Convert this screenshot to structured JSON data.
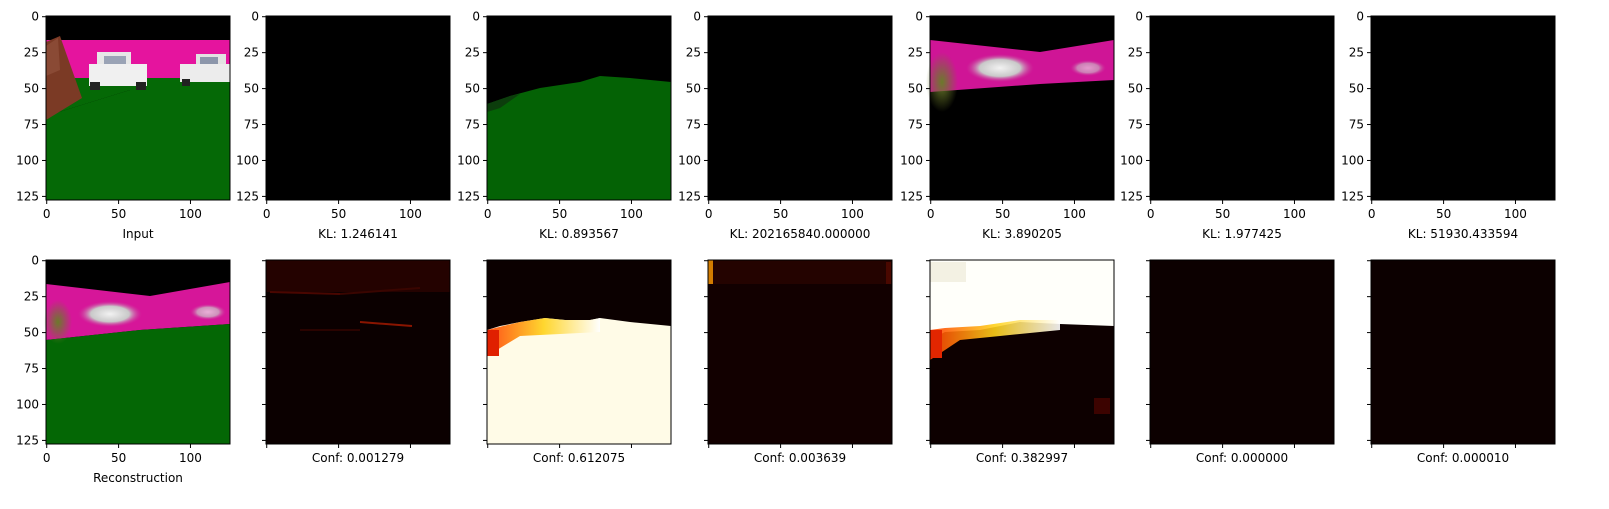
{
  "figure": {
    "top_row": {
      "panels": [
        {
          "id": "input",
          "caption": "Input",
          "content": "input-scene"
        },
        {
          "id": "c1",
          "caption": "KL: 1.246141",
          "content": "black"
        },
        {
          "id": "c2",
          "caption": "KL: 0.893567",
          "content": "green-ground"
        },
        {
          "id": "c3",
          "caption": "KL: 202165840.000000",
          "content": "black"
        },
        {
          "id": "c4",
          "caption": "KL: 3.890205",
          "content": "cars-sky"
        },
        {
          "id": "c5",
          "caption": "KL: 1.977425",
          "content": "black"
        },
        {
          "id": "c6",
          "caption": "KL: 51930.433594",
          "content": "black"
        }
      ]
    },
    "bottom_row": {
      "panels": [
        {
          "id": "reconstruction",
          "caption": "Reconstruction",
          "content": "recon-scene"
        },
        {
          "id": "m1",
          "caption": "Conf: 0.001279",
          "content": "mask-sky-faint"
        },
        {
          "id": "m2",
          "caption": "Conf: 0.612075",
          "content": "mask-ground"
        },
        {
          "id": "m3",
          "caption": "Conf: 0.003639",
          "content": "mask-dark"
        },
        {
          "id": "m4",
          "caption": "Conf: 0.382997",
          "content": "mask-sky"
        },
        {
          "id": "m5",
          "caption": "Conf: 0.000000",
          "content": "mask-dark"
        },
        {
          "id": "m6",
          "caption": "Conf: 0.000010",
          "content": "mask-dark"
        }
      ]
    },
    "y_tick_labels": [
      "0",
      "25",
      "50",
      "75",
      "100",
      "125"
    ],
    "x_tick_labels": [
      "0",
      "50",
      "100"
    ]
  }
}
